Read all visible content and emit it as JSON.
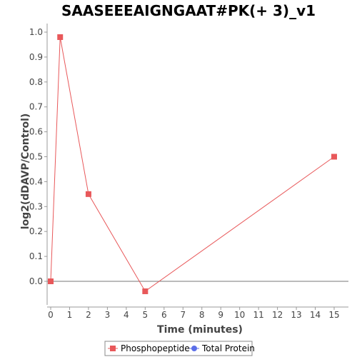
{
  "chart_data": {
    "type": "line",
    "title": "SAASEEEAIGNGAAT#PK(+ 3)_v1",
    "xlabel": "Time (minutes)",
    "ylabel": "log2(dDAVP/Control)",
    "xlim": [
      0,
      16
    ],
    "ylim": [
      -0.12,
      1.05
    ],
    "x_ticks": [
      0,
      1,
      2,
      3,
      4,
      5,
      6,
      7,
      8,
      9,
      10,
      11,
      12,
      13,
      14,
      15
    ],
    "y_ticks": [
      0.0,
      0.1,
      0.2,
      0.3,
      0.4,
      0.5,
      0.6,
      0.7,
      0.8,
      0.9,
      1.0
    ],
    "series": [
      {
        "name": "Phosphopeptide",
        "color": "#e8585a",
        "marker": "square",
        "x": [
          0,
          0.5,
          2,
          5,
          15
        ],
        "y": [
          0.0,
          0.98,
          0.35,
          -0.04,
          0.5
        ]
      },
      {
        "name": "Total Protein",
        "color": "#5b6ee8",
        "marker": "circle",
        "x": [],
        "y": []
      }
    ],
    "zero_line": true,
    "grid": false,
    "legend_position": "bottom"
  }
}
